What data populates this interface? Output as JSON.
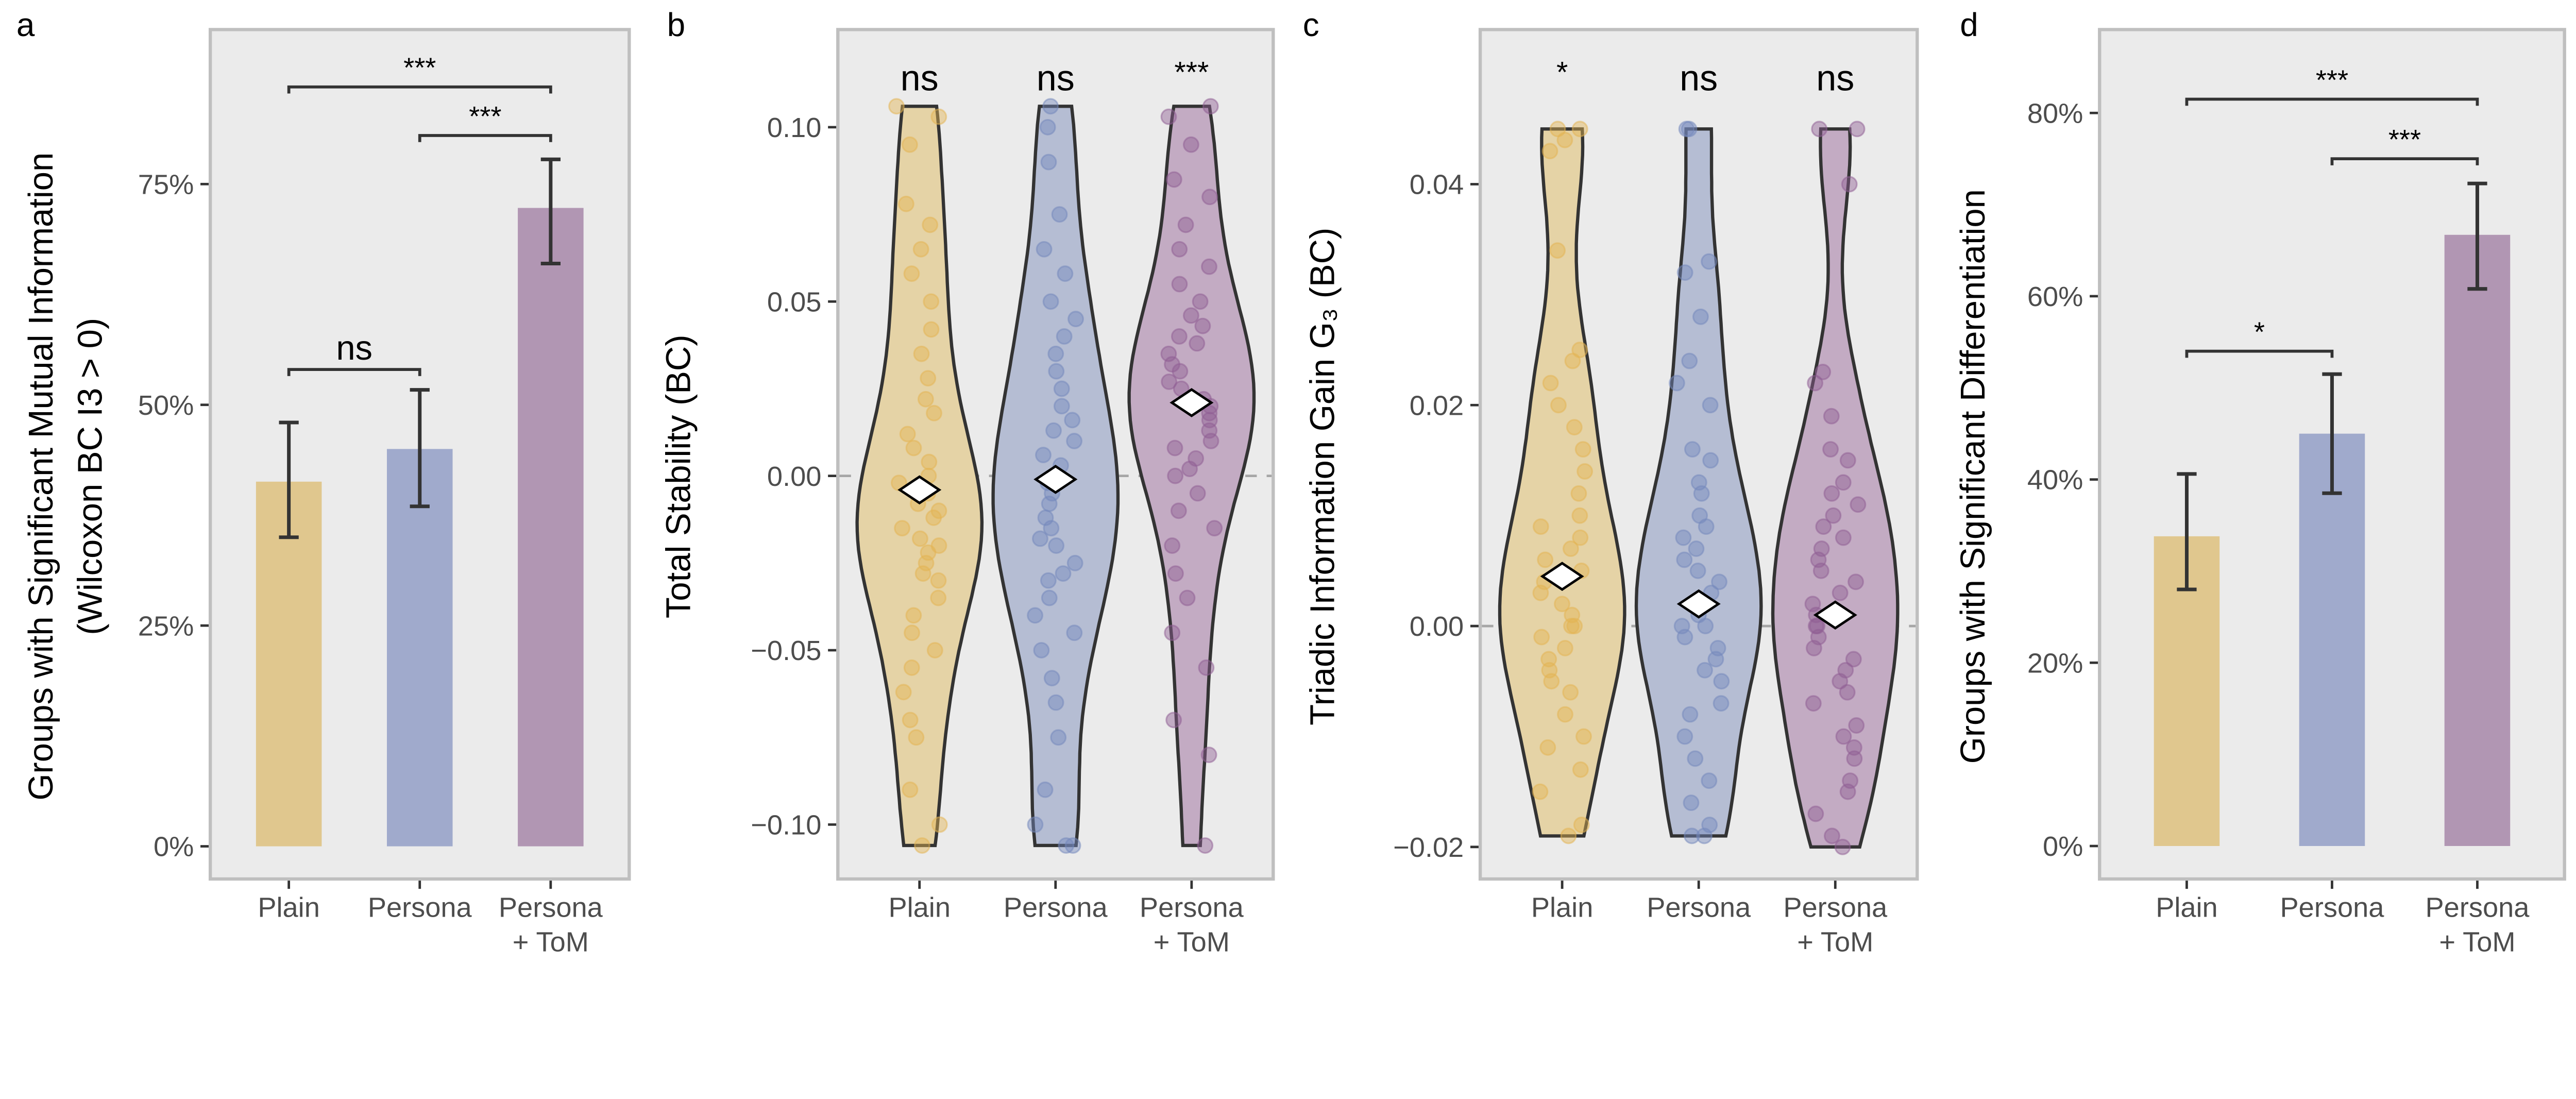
{
  "colors": {
    "panel_bg": "#EBEBEB",
    "panel_border": "#BFBFBF",
    "Plain": {
      "bar": "#E0C78E",
      "violin": "#E5D3A6",
      "point": "#E3B452"
    },
    "Persona": {
      "bar": "#A0AACC",
      "violin": "#B5BDD3",
      "point": "#7488BC"
    },
    "Persona + ToM": {
      "bar": "#B196B3",
      "violin": "#C3ABC3",
      "point": "#8F5E93"
    }
  },
  "chart_data": [
    {
      "panel": "a",
      "type": "bar",
      "ylabel": [
        "Groups with Significant Mutual Information",
        "(Wilcoxon BC I3 > 0)"
      ],
      "categories": [
        "Plain",
        "Persona",
        "Persona + ToM"
      ],
      "category_lines": [
        [
          "Plain"
        ],
        [
          "Persona"
        ],
        [
          "Persona",
          "+ ToM"
        ]
      ],
      "values": [
        41.3,
        45.0,
        72.3
      ],
      "error_low": [
        35.0,
        38.5,
        66.0
      ],
      "error_high": [
        48.0,
        51.7,
        77.8
      ],
      "ylim": [
        -3.7,
        92.5
      ],
      "yticks": [
        0,
        25,
        50,
        75
      ],
      "ytick_labels": [
        "0%",
        "25%",
        "50%",
        "75%"
      ],
      "brackets": [
        {
          "from": 0,
          "to": 2,
          "y": 86,
          "label": "***"
        },
        {
          "from": 1,
          "to": 2,
          "y": 80.5,
          "label": "***"
        },
        {
          "from": 0,
          "to": 1,
          "y": 54,
          "label": "ns"
        }
      ]
    },
    {
      "panel": "b",
      "type": "violin",
      "ylabel": [
        "Total Stability (BC)"
      ],
      "categories": [
        "Plain",
        "Persona",
        "Persona + ToM"
      ],
      "category_lines": [
        [
          "Plain"
        ],
        [
          "Persona"
        ],
        [
          "Persona",
          "+ ToM"
        ]
      ],
      "ylim": [
        -0.1156,
        0.128
      ],
      "yticks": [
        -0.1,
        -0.05,
        0.0,
        0.05,
        0.1
      ],
      "ytick_labels": [
        "−0.10",
        "−0.05",
        "0.00",
        "0.05",
        "0.10"
      ],
      "reference_line": 0,
      "means": [
        -0.004,
        -0.001,
        0.021
      ],
      "significance": [
        "ns",
        "ns",
        "***"
      ],
      "points": [
        [
          0.106,
          0.103,
          0.095,
          0.078,
          0.072,
          0.065,
          0.058,
          0.05,
          0.042,
          0.035,
          0.028,
          0.022,
          0.018,
          0.012,
          0.008,
          0.004,
          0.0,
          -0.002,
          -0.005,
          -0.008,
          -0.01,
          -0.012,
          -0.015,
          -0.018,
          -0.02,
          -0.022,
          -0.025,
          -0.028,
          -0.03,
          -0.035,
          -0.04,
          -0.045,
          -0.05,
          -0.055,
          -0.062,
          -0.07,
          -0.075,
          -0.09,
          -0.1,
          -0.106
        ],
        [
          -0.106,
          -0.106,
          -0.1,
          -0.09,
          -0.075,
          -0.065,
          -0.058,
          -0.05,
          -0.045,
          -0.04,
          -0.035,
          -0.03,
          -0.028,
          -0.025,
          -0.02,
          -0.018,
          -0.015,
          -0.012,
          -0.008,
          -0.005,
          -0.002,
          0.0,
          0.003,
          0.006,
          0.01,
          0.013,
          0.016,
          0.02,
          0.025,
          0.03,
          0.035,
          0.04,
          0.045,
          0.05,
          0.058,
          0.065,
          0.075,
          0.09,
          0.1,
          0.106
        ],
        [
          -0.106,
          -0.08,
          -0.07,
          -0.055,
          -0.045,
          -0.035,
          -0.028,
          -0.02,
          -0.015,
          -0.01,
          -0.005,
          0.0,
          0.002,
          0.005,
          0.008,
          0.01,
          0.013,
          0.016,
          0.018,
          0.02,
          0.022,
          0.025,
          0.027,
          0.03,
          0.032,
          0.035,
          0.038,
          0.04,
          0.043,
          0.046,
          0.05,
          0.055,
          0.06,
          0.065,
          0.072,
          0.08,
          0.085,
          0.095,
          0.103,
          0.106
        ]
      ]
    },
    {
      "panel": "c",
      "type": "violin",
      "ylabel": [
        "Triadic Information Gain G₃ (BC)"
      ],
      "categories": [
        "Plain",
        "Persona",
        "Persona + ToM"
      ],
      "category_lines": [
        [
          "Plain"
        ],
        [
          "Persona"
        ],
        [
          "Persona",
          "+ ToM"
        ]
      ],
      "ylim": [
        -0.0229,
        0.054
      ],
      "yticks": [
        -0.02,
        0.0,
        0.02,
        0.04
      ],
      "ytick_labels": [
        "−0.02",
        "0.00",
        "0.02",
        "0.04"
      ],
      "reference_line": 0,
      "means": [
        0.0045,
        0.002,
        0.001
      ],
      "significance": [
        "*",
        "ns",
        "ns"
      ],
      "points": [
        [
          -0.019,
          -0.018,
          -0.015,
          -0.013,
          -0.011,
          -0.01,
          -0.008,
          -0.006,
          -0.005,
          -0.004,
          -0.003,
          -0.002,
          -0.001,
          0.0,
          0.0,
          0.001,
          0.002,
          0.003,
          0.004,
          0.005,
          0.006,
          0.007,
          0.008,
          0.009,
          0.01,
          0.012,
          0.014,
          0.016,
          0.018,
          0.02,
          0.022,
          0.024,
          0.025,
          0.034,
          0.043,
          0.045,
          0.045,
          0.044
        ],
        [
          -0.019,
          -0.019,
          -0.018,
          -0.016,
          -0.014,
          -0.012,
          -0.01,
          -0.008,
          -0.007,
          -0.005,
          -0.004,
          -0.003,
          -0.002,
          -0.001,
          0.0,
          0.0,
          0.001,
          0.002,
          0.003,
          0.004,
          0.005,
          0.006,
          0.007,
          0.008,
          0.009,
          0.01,
          0.012,
          0.013,
          0.015,
          0.016,
          0.02,
          0.022,
          0.024,
          0.028,
          0.032,
          0.033,
          0.045,
          0.045
        ],
        [
          -0.02,
          -0.019,
          -0.017,
          -0.015,
          -0.014,
          -0.012,
          -0.011,
          -0.01,
          -0.009,
          -0.007,
          -0.006,
          -0.005,
          -0.004,
          -0.003,
          -0.002,
          -0.001,
          0.0,
          0.0,
          0.001,
          0.002,
          0.003,
          0.004,
          0.005,
          0.006,
          0.007,
          0.008,
          0.009,
          0.01,
          0.011,
          0.012,
          0.013,
          0.015,
          0.016,
          0.019,
          0.022,
          0.023,
          0.04,
          0.045,
          0.045
        ]
      ]
    },
    {
      "panel": "d",
      "type": "bar",
      "ylabel": [
        "Groups with Significant Differentiation"
      ],
      "categories": [
        "Plain",
        "Persona",
        "Persona + ToM"
      ],
      "category_lines": [
        [
          "Plain"
        ],
        [
          "Persona"
        ],
        [
          "Persona",
          "+ ToM"
        ]
      ],
      "values": [
        33.8,
        45.0,
        66.7
      ],
      "error_low": [
        28.0,
        38.5,
        60.8
      ],
      "error_high": [
        40.6,
        51.5,
        72.3
      ],
      "ylim": [
        -3.6,
        89.1
      ],
      "yticks": [
        0,
        20,
        40,
        60,
        80
      ],
      "ytick_labels": [
        "0%",
        "20%",
        "40%",
        "60%",
        "80%"
      ],
      "brackets": [
        {
          "from": 0,
          "to": 2,
          "y": 81.5,
          "label": "***"
        },
        {
          "from": 1,
          "to": 2,
          "y": 75,
          "label": "***"
        },
        {
          "from": 0,
          "to": 1,
          "y": 54,
          "label": "*"
        }
      ]
    }
  ]
}
